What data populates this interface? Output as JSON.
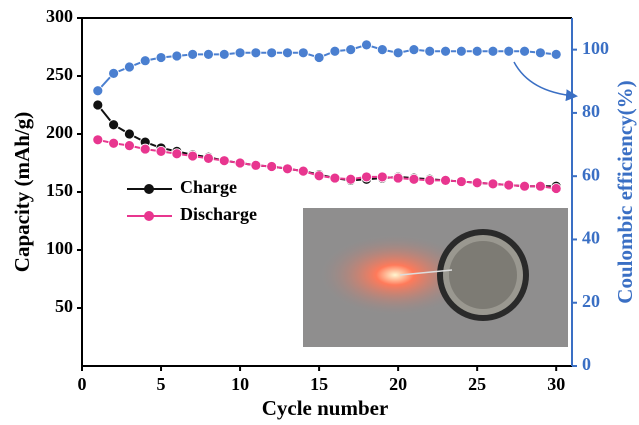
{
  "chart_data": {
    "type": "line",
    "xlabel": "Cycle number",
    "ylabel": "Capacity (mAh/g)",
    "y2label": "Coulombic efficiency(%)",
    "x": [
      1,
      2,
      3,
      4,
      5,
      6,
      7,
      8,
      9,
      10,
      11,
      12,
      13,
      14,
      15,
      16,
      17,
      18,
      19,
      20,
      21,
      22,
      23,
      24,
      25,
      26,
      27,
      28,
      29,
      30
    ],
    "series": [
      {
        "name": "Charge",
        "color": "#111111",
        "values": [
          225,
          208,
          200,
          193,
          188,
          185,
          182,
          180,
          177,
          175,
          173,
          172,
          170,
          168,
          165,
          162,
          160,
          161,
          162,
          163,
          162,
          161,
          160,
          159,
          158,
          157,
          156,
          155,
          155,
          155
        ]
      },
      {
        "name": "Discharge",
        "color": "#e8368f",
        "values": [
          195,
          192,
          190,
          187,
          185,
          183,
          181,
          179,
          177,
          175,
          173,
          172,
          170,
          168,
          164,
          162,
          161,
          163,
          163,
          162,
          161,
          160,
          160,
          159,
          158,
          157,
          156,
          155,
          155,
          153
        ]
      },
      {
        "color": "#4a7fd0",
        "axis": "y2",
        "values": [
          87,
          92.5,
          94.5,
          96.5,
          97.5,
          98,
          98.5,
          98.5,
          98.5,
          99,
          99,
          99,
          99,
          99,
          97.5,
          99.5,
          100,
          101.5,
          100,
          99,
          100,
          99.5,
          99.5,
          99.5,
          99.5,
          99.5,
          99.5,
          99.5,
          99,
          98.5
        ]
      }
    ],
    "xlim": [
      0,
      31
    ],
    "xticks": [
      0,
      5,
      10,
      15,
      20,
      25,
      30
    ],
    "ylim": [
      0,
      300
    ],
    "yticks": [
      50,
      100,
      150,
      200,
      250,
      300
    ],
    "y2lim": [
      0,
      110
    ],
    "y2ticks": [
      0,
      20,
      40,
      60,
      80,
      100
    ],
    "y2color": "#3a6fc4"
  }
}
